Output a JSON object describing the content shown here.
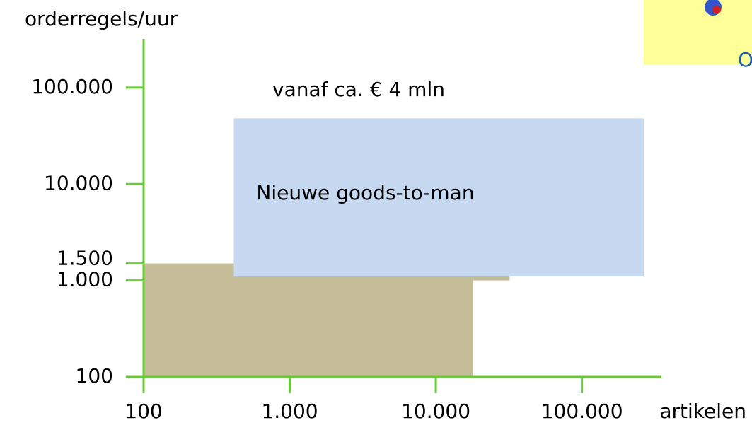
{
  "chart_data": {
    "type": "region",
    "ylabel": "orderregels/uur",
    "xlabel": "artikelen",
    "annotation": "vanaf ca. € 4 mln",
    "logo_text": "O",
    "log_x": true,
    "log_y": true,
    "axis_color": "#66cc33",
    "xlim": [
      100,
      350000
    ],
    "ylim": [
      100,
      320000
    ],
    "xticks": [
      100,
      {
        "value": 1000,
        "label": "1.000"
      },
      {
        "value": 10000,
        "label": "10.000"
      },
      {
        "value": 100000,
        "label": "100.000"
      }
    ],
    "yticks": [
      100,
      {
        "value": 1000,
        "label": "1.000"
      },
      {
        "value": 1500,
        "label": "1.500"
      },
      {
        "value": 10000,
        "label": "10.000"
      },
      {
        "value": 100000,
        "label": "100.000"
      }
    ],
    "regions": [
      {
        "x": [
          100,
          18000
        ],
        "y": [
          100,
          1500
        ],
        "color": "#c4bd97"
      },
      {
        "x": [
          100,
          32000
        ],
        "y": [
          1000,
          1500
        ],
        "color": "#c4bd97"
      },
      {
        "label": "Nieuwe goods-to-man",
        "x": [
          414,
          265000
        ],
        "y": [
          1100,
          48000
        ],
        "color": "#c6d9f1"
      }
    ]
  }
}
